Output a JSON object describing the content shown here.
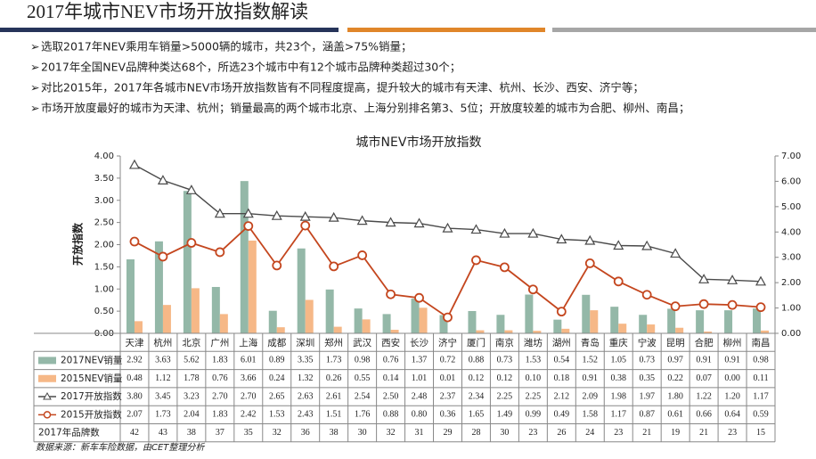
{
  "header": {
    "title": "2017年城市NEV市场开放指数解读",
    "bullets": [
      "选取2017年NEV乘用车销量>5000辆的城市，共23个，涵盖>75%销量；",
      "2017年全国NEV品牌种类达68个，所选23个城市中有12个城市品牌种类超过30个；",
      "对比2015年，2017年各城市NEV市场开放指数皆有不同程度提高，提升较大的城市有天津、杭州、长沙、西安、济宁等；",
      "市场开放度最好的城市为天津、杭州；销量最高的两个城市北京、上海分别排名第3、5位；开放度较差的城市为合肥、柳州、南昌；"
    ]
  },
  "chart_data": {
    "type": "combo",
    "title": "城市NEV市场开放指数",
    "ylabel": "开放指数",
    "categories": [
      "天津",
      "杭州",
      "北京",
      "广州",
      "上海",
      "成都",
      "深圳",
      "郑州",
      "武汉",
      "西安",
      "长沙",
      "济宁",
      "厦门",
      "南京",
      "潍坊",
      "湖州",
      "青岛",
      "重庆",
      "宁波",
      "昆明",
      "合肥",
      "柳州",
      "南昌"
    ],
    "series": [
      {
        "name": "2017NEV销量",
        "type": "bar",
        "axis": "y2",
        "color": "#94b8a8",
        "values": [
          2.92,
          3.63,
          5.62,
          1.83,
          6.01,
          0.89,
          3.35,
          1.73,
          0.98,
          0.76,
          1.37,
          0.72,
          0.88,
          0.73,
          1.53,
          0.54,
          1.52,
          1.05,
          0.73,
          0.97,
          0.91,
          0.91,
          0.98
        ],
        "value_labels": [
          "2.92",
          "3.63",
          "5.62",
          "1.83",
          "6.01",
          "0.89",
          "3.35",
          "1.73",
          "0.98",
          "0.76",
          "1.37",
          "0.72",
          "0.88",
          "0.73",
          "1.53",
          "0.54",
          "1.52",
          "1.05",
          "0.73",
          "0.97",
          "0.91",
          "0.91",
          "0.98"
        ]
      },
      {
        "name": "2015NEV销量",
        "type": "bar",
        "axis": "y2",
        "color": "#f6b887",
        "values": [
          0.48,
          1.12,
          1.78,
          0.76,
          3.66,
          0.24,
          1.32,
          0.26,
          0.55,
          0.14,
          1.01,
          0.01,
          0.12,
          0.12,
          0.1,
          0.18,
          0.91,
          0.38,
          0.35,
          0.22,
          0.07,
          0.0,
          0.11
        ],
        "value_labels": [
          "0.48",
          "1.12",
          "1.78",
          "0.76",
          "3.66",
          "0.24",
          "1.32",
          "0.26",
          "0.55",
          "0.14",
          "1.01",
          "0.01",
          "0.12",
          "0.12",
          "0.10",
          "0.18",
          "0.91",
          "0.38",
          "0.35",
          "0.22",
          "0.07",
          "0.00",
          "0.11"
        ]
      },
      {
        "name": "2017开放指数",
        "type": "line",
        "marker": "triangle",
        "color": "#4a4a4a",
        "values": [
          3.8,
          3.45,
          3.23,
          2.7,
          2.7,
          2.65,
          2.63,
          2.61,
          2.54,
          2.5,
          2.48,
          2.37,
          2.34,
          2.25,
          2.25,
          2.12,
          2.09,
          1.98,
          1.97,
          1.8,
          1.22,
          1.2,
          1.17
        ],
        "value_labels": [
          "3.80",
          "3.45",
          "3.23",
          "2.70",
          "2.70",
          "2.65",
          "2.63",
          "2.61",
          "2.54",
          "2.50",
          "2.48",
          "2.37",
          "2.34",
          "2.25",
          "2.25",
          "2.12",
          "2.09",
          "1.98",
          "1.97",
          "1.80",
          "1.22",
          "1.20",
          "1.17"
        ]
      },
      {
        "name": "2015开放指数",
        "type": "line",
        "marker": "circle",
        "color": "#c4461e",
        "values": [
          2.07,
          1.73,
          2.04,
          1.83,
          2.42,
          1.53,
          2.43,
          1.51,
          1.76,
          0.88,
          0.8,
          0.36,
          1.65,
          1.49,
          0.99,
          0.49,
          1.58,
          1.17,
          0.87,
          0.61,
          0.66,
          0.64,
          0.59
        ],
        "value_labels": [
          "2.07",
          "1.73",
          "2.04",
          "1.83",
          "2.42",
          "1.53",
          "2.43",
          "1.51",
          "1.76",
          "0.88",
          "0.80",
          "0.36",
          "1.65",
          "1.49",
          "0.99",
          "0.49",
          "1.58",
          "1.17",
          "0.87",
          "0.61",
          "0.66",
          "0.64",
          "0.59"
        ]
      }
    ],
    "brand_counts": {
      "name": "2017年品牌数",
      "values": [
        42,
        43,
        38,
        37,
        35,
        32,
        36,
        38,
        30,
        32,
        31,
        29,
        28,
        30,
        23,
        26,
        24,
        23,
        21,
        19,
        21,
        23,
        15
      ]
    },
    "ylim": [
      0,
      4
    ],
    "yticks": [
      {
        "value": 0,
        "label": "0.00"
      },
      {
        "value": 0.5,
        "label": "0.50"
      },
      {
        "value": 1,
        "label": "1.00"
      },
      {
        "value": 1.5,
        "label": "1.50"
      },
      {
        "value": 2,
        "label": "2.00"
      },
      {
        "value": 2.5,
        "label": "2.50"
      },
      {
        "value": 3,
        "label": "3.00"
      },
      {
        "value": 3.5,
        "label": "3.50"
      },
      {
        "value": 4,
        "label": "4.00"
      }
    ],
    "y2lim": [
      0,
      7
    ],
    "y2ticks": [
      {
        "value": 0,
        "label": "0.00"
      },
      {
        "value": 1,
        "label": "1.00"
      },
      {
        "value": 2,
        "label": "2.00"
      },
      {
        "value": 3,
        "label": "3.00"
      },
      {
        "value": 4,
        "label": "4.00"
      },
      {
        "value": 5,
        "label": "5.00"
      },
      {
        "value": 6,
        "label": "6.00"
      },
      {
        "value": 7,
        "label": "7.00"
      }
    ],
    "source": "数据来源：新车车险数据，由CET整理分析"
  }
}
